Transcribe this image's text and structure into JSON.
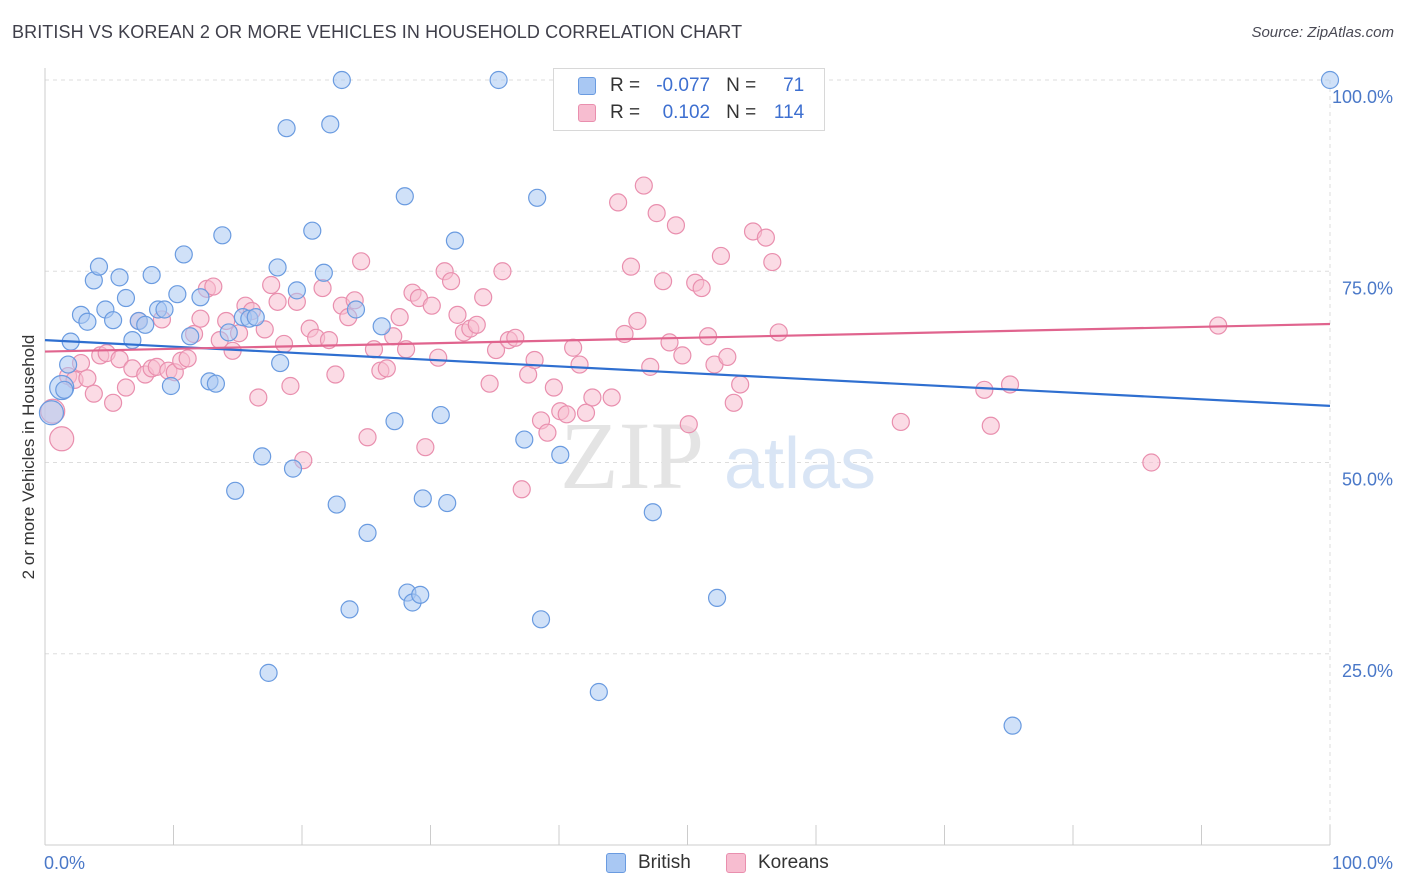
{
  "header": {
    "title": "BRITISH VS KOREAN 2 OR MORE VEHICLES IN HOUSEHOLD CORRELATION CHART",
    "source": "Source: ZipAtlas.com"
  },
  "legend_top": {
    "rows": [
      {
        "r_label": "R =",
        "r_value": "-0.077",
        "n_label": "N =",
        "n_value": "71"
      },
      {
        "r_label": "R =",
        "r_value": "0.102",
        "n_label": "N =",
        "n_value": "114"
      }
    ]
  },
  "watermark": {
    "zip": "ZIP",
    "atlas": "atlas"
  },
  "colors": {
    "british_fill": "#a9c8f3",
    "british_stroke": "#6a9be0",
    "british_line": "#2f6fd0",
    "korean_fill": "#f7bdd0",
    "korean_stroke": "#e98fae",
    "korean_line": "#e0648e",
    "tick_text": "#4a78c8",
    "grid": "#dddddd"
  },
  "chart_data": {
    "type": "scatter",
    "title": "BRITISH VS KOREAN 2 OR MORE VEHICLES IN HOUSEHOLD CORRELATION CHART",
    "xlabel": "",
    "ylabel": "2 or more Vehicles in Household",
    "xlim": [
      0,
      100
    ],
    "ylim": [
      0,
      100
    ],
    "x_tick_labels": [
      "0.0%",
      "100.0%"
    ],
    "y_ticks": [
      {
        "value": 100,
        "label": "100.0%"
      },
      {
        "value": 75,
        "label": "75.0%"
      },
      {
        "value": 50,
        "label": "50.0%"
      },
      {
        "value": 25,
        "label": "25.0%"
      }
    ],
    "grid": true,
    "legend_position": "bottom-center",
    "series": [
      {
        "name": "British",
        "trend": {
          "x": [
            0,
            100
          ],
          "y": [
            66.0,
            57.4
          ]
        },
        "points": [
          [
            0.5,
            56.5
          ],
          [
            1.3,
            59.8
          ],
          [
            1.5,
            59.5
          ],
          [
            1.8,
            62.8
          ],
          [
            2.0,
            65.8
          ],
          [
            2.8,
            69.3
          ],
          [
            3.3,
            68.4
          ],
          [
            3.8,
            73.8
          ],
          [
            4.2,
            75.6
          ],
          [
            4.7,
            70.0
          ],
          [
            5.3,
            68.6
          ],
          [
            5.8,
            74.2
          ],
          [
            6.3,
            71.5
          ],
          [
            6.8,
            66.0
          ],
          [
            7.3,
            68.5
          ],
          [
            7.8,
            68.0
          ],
          [
            8.3,
            74.5
          ],
          [
            8.8,
            70.0
          ],
          [
            9.3,
            70.0
          ],
          [
            9.8,
            60.0
          ],
          [
            10.3,
            72.0
          ],
          [
            10.8,
            77.2
          ],
          [
            11.3,
            66.5
          ],
          [
            12.1,
            71.6
          ],
          [
            12.8,
            60.6
          ],
          [
            13.3,
            60.3
          ],
          [
            13.8,
            79.7
          ],
          [
            14.3,
            67.0
          ],
          [
            14.8,
            46.3
          ],
          [
            15.4,
            69.0
          ],
          [
            15.9,
            68.8
          ],
          [
            16.4,
            69.0
          ],
          [
            16.9,
            50.8
          ],
          [
            17.4,
            22.5
          ],
          [
            18.1,
            75.5
          ],
          [
            18.3,
            63.0
          ],
          [
            18.8,
            93.7
          ],
          [
            19.3,
            49.2
          ],
          [
            19.6,
            72.5
          ],
          [
            20.8,
            80.3
          ],
          [
            21.7,
            74.8
          ],
          [
            22.2,
            94.2
          ],
          [
            22.7,
            44.5
          ],
          [
            23.1,
            100
          ],
          [
            23.7,
            30.8
          ],
          [
            24.2,
            70.0
          ],
          [
            25.1,
            40.8
          ],
          [
            26.2,
            67.8
          ],
          [
            27.2,
            55.4
          ],
          [
            28.0,
            84.8
          ],
          [
            28.2,
            33.0
          ],
          [
            28.6,
            31.7
          ],
          [
            29.2,
            32.7
          ],
          [
            29.4,
            45.3
          ],
          [
            30.8,
            56.2
          ],
          [
            31.3,
            44.7
          ],
          [
            31.9,
            79.0
          ],
          [
            35.3,
            100
          ],
          [
            37.3,
            53.0
          ],
          [
            38.3,
            84.6
          ],
          [
            38.6,
            29.5
          ],
          [
            40.1,
            51.0
          ],
          [
            43.1,
            20.0
          ],
          [
            47.3,
            43.5
          ],
          [
            52.3,
            32.3
          ],
          [
            75.3,
            15.6
          ],
          [
            100.0,
            100
          ]
        ]
      },
      {
        "name": "Koreans",
        "trend": {
          "x": [
            0,
            100
          ],
          "y": [
            64.5,
            68.1
          ]
        },
        "points": [
          [
            0.6,
            56.7
          ],
          [
            1.3,
            53.1
          ],
          [
            1.8,
            61.3
          ],
          [
            2.3,
            60.8
          ],
          [
            2.8,
            63.0
          ],
          [
            3.3,
            61.0
          ],
          [
            3.8,
            59.0
          ],
          [
            4.3,
            64.0
          ],
          [
            4.8,
            64.3
          ],
          [
            5.3,
            57.8
          ],
          [
            5.8,
            63.5
          ],
          [
            6.3,
            59.8
          ],
          [
            6.8,
            62.3
          ],
          [
            7.3,
            68.5
          ],
          [
            7.8,
            61.5
          ],
          [
            8.3,
            62.3
          ],
          [
            8.7,
            62.5
          ],
          [
            9.1,
            68.7
          ],
          [
            9.6,
            62.0
          ],
          [
            10.1,
            61.8
          ],
          [
            10.6,
            63.3
          ],
          [
            11.1,
            63.6
          ],
          [
            11.6,
            66.8
          ],
          [
            12.1,
            68.8
          ],
          [
            12.6,
            72.7
          ],
          [
            13.1,
            73.0
          ],
          [
            13.6,
            66.0
          ],
          [
            14.1,
            68.5
          ],
          [
            14.6,
            64.6
          ],
          [
            15.1,
            66.9
          ],
          [
            15.6,
            70.5
          ],
          [
            16.1,
            69.8
          ],
          [
            16.6,
            58.5
          ],
          [
            17.1,
            67.4
          ],
          [
            17.6,
            73.2
          ],
          [
            18.1,
            71.0
          ],
          [
            18.6,
            65.5
          ],
          [
            19.1,
            60.0
          ],
          [
            19.6,
            71.0
          ],
          [
            20.1,
            50.3
          ],
          [
            20.6,
            67.5
          ],
          [
            21.1,
            66.3
          ],
          [
            21.6,
            72.8
          ],
          [
            22.1,
            66.0
          ],
          [
            22.6,
            61.5
          ],
          [
            23.1,
            70.5
          ],
          [
            23.6,
            69.0
          ],
          [
            24.1,
            71.2
          ],
          [
            24.6,
            76.3
          ],
          [
            25.1,
            53.3
          ],
          [
            25.6,
            64.8
          ],
          [
            26.1,
            62.0
          ],
          [
            26.6,
            62.3
          ],
          [
            27.1,
            66.5
          ],
          [
            27.6,
            69.0
          ],
          [
            28.1,
            64.8
          ],
          [
            28.6,
            72.2
          ],
          [
            29.1,
            71.5
          ],
          [
            29.6,
            52.0
          ],
          [
            30.1,
            70.5
          ],
          [
            30.6,
            63.7
          ],
          [
            31.1,
            75.0
          ],
          [
            31.6,
            73.7
          ],
          [
            32.1,
            69.3
          ],
          [
            32.6,
            67.0
          ],
          [
            33.1,
            67.5
          ],
          [
            33.6,
            68.0
          ],
          [
            34.1,
            71.6
          ],
          [
            34.6,
            60.3
          ],
          [
            35.1,
            64.7
          ],
          [
            35.6,
            75.0
          ],
          [
            36.1,
            66.0
          ],
          [
            36.6,
            66.3
          ],
          [
            37.1,
            46.5
          ],
          [
            37.6,
            61.5
          ],
          [
            38.1,
            63.4
          ],
          [
            38.6,
            55.5
          ],
          [
            39.1,
            53.9
          ],
          [
            39.6,
            59.8
          ],
          [
            40.1,
            56.7
          ],
          [
            40.6,
            56.3
          ],
          [
            41.1,
            65.0
          ],
          [
            41.6,
            62.8
          ],
          [
            42.1,
            56.5
          ],
          [
            42.6,
            58.5
          ],
          [
            44.1,
            58.5
          ],
          [
            44.6,
            84.0
          ],
          [
            45.1,
            66.8
          ],
          [
            45.6,
            75.6
          ],
          [
            46.1,
            68.5
          ],
          [
            46.6,
            86.2
          ],
          [
            47.1,
            62.5
          ],
          [
            47.6,
            82.6
          ],
          [
            48.1,
            73.7
          ],
          [
            48.6,
            65.7
          ],
          [
            49.1,
            81.0
          ],
          [
            49.6,
            64.0
          ],
          [
            50.1,
            55.0
          ],
          [
            50.6,
            73.5
          ],
          [
            51.1,
            72.8
          ],
          [
            51.6,
            66.5
          ],
          [
            52.1,
            62.8
          ],
          [
            52.6,
            77.0
          ],
          [
            53.1,
            63.8
          ],
          [
            53.6,
            57.8
          ],
          [
            54.1,
            60.2
          ],
          [
            55.1,
            80.2
          ],
          [
            56.1,
            79.4
          ],
          [
            56.6,
            76.2
          ],
          [
            57.1,
            67.0
          ],
          [
            66.6,
            55.3
          ],
          [
            73.1,
            59.5
          ],
          [
            73.6,
            54.8
          ],
          [
            75.1,
            60.2
          ],
          [
            86.1,
            50.0
          ],
          [
            91.3,
            67.9
          ]
        ]
      }
    ]
  },
  "bottom_legend": {
    "items": [
      {
        "label": "British"
      },
      {
        "label": "Koreans"
      }
    ]
  }
}
